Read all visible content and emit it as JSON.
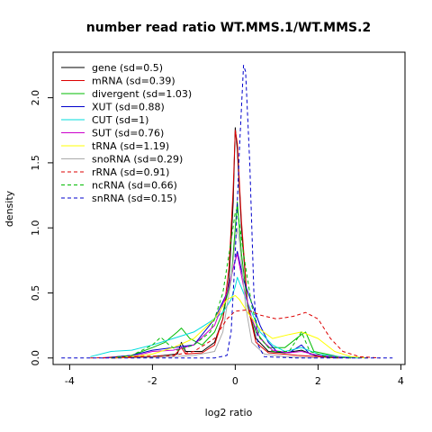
{
  "chart_data": {
    "type": "line",
    "title": "number read ratio WT.MMS.1/WT.MMS.2",
    "xlabel": "log2 ratio",
    "ylabel": "density",
    "xlim": [
      -4.4,
      4.1
    ],
    "ylim": [
      -0.05,
      2.35
    ],
    "x_ticks": [
      -4,
      -2,
      0,
      2,
      4
    ],
    "y_ticks": [
      0.0,
      0.5,
      1.0,
      1.5,
      2.0
    ],
    "legend_position": "top-left",
    "grid": false,
    "series": [
      {
        "name": "gene (sd=0.5)",
        "color": "#000000",
        "dash": "solid",
        "points": [
          [
            -3.0,
            0.0
          ],
          [
            -2.0,
            0.01
          ],
          [
            -1.4,
            0.03
          ],
          [
            -1.3,
            0.12
          ],
          [
            -1.2,
            0.05
          ],
          [
            -0.8,
            0.05
          ],
          [
            -0.5,
            0.12
          ],
          [
            -0.3,
            0.3
          ],
          [
            -0.15,
            0.6
          ],
          [
            -0.05,
            1.2
          ],
          [
            0.0,
            1.77
          ],
          [
            0.05,
            1.6
          ],
          [
            0.15,
            1.0
          ],
          [
            0.3,
            0.4
          ],
          [
            0.5,
            0.15
          ],
          [
            0.8,
            0.05
          ],
          [
            1.2,
            0.04
          ],
          [
            1.6,
            0.06
          ],
          [
            2.0,
            0.01
          ],
          [
            2.5,
            0.0
          ]
        ]
      },
      {
        "name": "mRNA (sd=0.39)",
        "color": "#dd0000",
        "dash": "solid",
        "points": [
          [
            -3.0,
            0.0
          ],
          [
            -1.5,
            0.01
          ],
          [
            -1.3,
            0.08
          ],
          [
            -1.2,
            0.03
          ],
          [
            -0.8,
            0.04
          ],
          [
            -0.5,
            0.1
          ],
          [
            -0.3,
            0.3
          ],
          [
            -0.15,
            0.7
          ],
          [
            -0.05,
            1.3
          ],
          [
            0.0,
            1.75
          ],
          [
            0.05,
            1.65
          ],
          [
            0.15,
            1.05
          ],
          [
            0.3,
            0.4
          ],
          [
            0.5,
            0.12
          ],
          [
            0.8,
            0.04
          ],
          [
            1.5,
            0.02
          ],
          [
            2.0,
            0.01
          ],
          [
            2.5,
            0.0
          ]
        ]
      },
      {
        "name": "divergent (sd=1.03)",
        "color": "#00bb00",
        "dash": "solid",
        "points": [
          [
            -3.2,
            0.0
          ],
          [
            -2.5,
            0.02
          ],
          [
            -2.0,
            0.08
          ],
          [
            -1.7,
            0.12
          ],
          [
            -1.4,
            0.2
          ],
          [
            -1.3,
            0.23
          ],
          [
            -1.1,
            0.15
          ],
          [
            -0.8,
            0.1
          ],
          [
            -0.5,
            0.2
          ],
          [
            -0.3,
            0.35
          ],
          [
            -0.1,
            0.6
          ],
          [
            0.0,
            1.0
          ],
          [
            0.05,
            1.2
          ],
          [
            0.15,
            0.8
          ],
          [
            0.3,
            0.4
          ],
          [
            0.5,
            0.2
          ],
          [
            0.8,
            0.08
          ],
          [
            1.2,
            0.08
          ],
          [
            1.6,
            0.18
          ],
          [
            1.7,
            0.2
          ],
          [
            1.9,
            0.05
          ],
          [
            2.5,
            0.01
          ],
          [
            3.2,
            0.0
          ]
        ]
      },
      {
        "name": "XUT (sd=0.88)",
        "color": "#0000cc",
        "dash": "solid",
        "points": [
          [
            -3.2,
            0.0
          ],
          [
            -2.5,
            0.02
          ],
          [
            -2.0,
            0.06
          ],
          [
            -1.5,
            0.08
          ],
          [
            -1.0,
            0.1
          ],
          [
            -0.5,
            0.3
          ],
          [
            -0.2,
            0.5
          ],
          [
            0.0,
            0.75
          ],
          [
            0.05,
            0.82
          ],
          [
            0.2,
            0.6
          ],
          [
            0.4,
            0.42
          ],
          [
            0.6,
            0.25
          ],
          [
            0.8,
            0.12
          ],
          [
            1.0,
            0.05
          ],
          [
            1.3,
            0.04
          ],
          [
            1.6,
            0.1
          ],
          [
            1.8,
            0.03
          ],
          [
            2.2,
            0.01
          ],
          [
            3.0,
            0.0
          ]
        ]
      },
      {
        "name": "CUT (sd=1)",
        "color": "#00dddd",
        "dash": "solid",
        "points": [
          [
            -3.5,
            0.01
          ],
          [
            -3.0,
            0.05
          ],
          [
            -2.5,
            0.06
          ],
          [
            -2.0,
            0.1
          ],
          [
            -1.5,
            0.15
          ],
          [
            -1.0,
            0.2
          ],
          [
            -0.6,
            0.28
          ],
          [
            -0.3,
            0.35
          ],
          [
            -0.1,
            0.45
          ],
          [
            0.0,
            0.55
          ],
          [
            0.05,
            0.62
          ],
          [
            0.2,
            0.5
          ],
          [
            0.4,
            0.35
          ],
          [
            0.6,
            0.2
          ],
          [
            0.9,
            0.1
          ],
          [
            1.2,
            0.05
          ],
          [
            1.6,
            0.08
          ],
          [
            2.0,
            0.03
          ],
          [
            2.5,
            0.01
          ],
          [
            3.0,
            0.0
          ]
        ]
      },
      {
        "name": "SUT (sd=0.76)",
        "color": "#cc00cc",
        "dash": "solid",
        "points": [
          [
            -3.2,
            0.0
          ],
          [
            -2.5,
            0.01
          ],
          [
            -2.0,
            0.05
          ],
          [
            -1.5,
            0.06
          ],
          [
            -1.0,
            0.1
          ],
          [
            -0.5,
            0.25
          ],
          [
            -0.2,
            0.5
          ],
          [
            0.0,
            0.75
          ],
          [
            0.05,
            0.8
          ],
          [
            0.2,
            0.55
          ],
          [
            0.4,
            0.3
          ],
          [
            0.6,
            0.15
          ],
          [
            0.9,
            0.06
          ],
          [
            1.3,
            0.04
          ],
          [
            1.6,
            0.05
          ],
          [
            2.0,
            0.02
          ],
          [
            2.8,
            0.0
          ]
        ]
      },
      {
        "name": "tRNA (sd=1.19)",
        "color": "#ffff00",
        "dash": "solid",
        "points": [
          [
            -3.0,
            0.0
          ],
          [
            -2.5,
            0.01
          ],
          [
            -2.0,
            0.03
          ],
          [
            -1.5,
            0.08
          ],
          [
            -1.0,
            0.15
          ],
          [
            -0.5,
            0.3
          ],
          [
            -0.2,
            0.45
          ],
          [
            0.0,
            0.48
          ],
          [
            0.1,
            0.45
          ],
          [
            0.3,
            0.35
          ],
          [
            0.6,
            0.22
          ],
          [
            0.9,
            0.15
          ],
          [
            1.3,
            0.18
          ],
          [
            1.6,
            0.2
          ],
          [
            2.0,
            0.15
          ],
          [
            2.4,
            0.05
          ],
          [
            2.8,
            0.01
          ],
          [
            3.2,
            0.0
          ]
        ]
      },
      {
        "name": "snoRNA (sd=0.29)",
        "color": "#aaaaaa",
        "dash": "solid",
        "points": [
          [
            -2.5,
            0.0
          ],
          [
            -1.5,
            0.01
          ],
          [
            -1.0,
            0.02
          ],
          [
            -0.5,
            0.05
          ],
          [
            -0.3,
            0.2
          ],
          [
            -0.1,
            0.6
          ],
          [
            0.0,
            0.9
          ],
          [
            0.05,
            1.0
          ],
          [
            0.1,
            0.9
          ],
          [
            0.25,
            0.4
          ],
          [
            0.4,
            0.12
          ],
          [
            0.7,
            0.03
          ],
          [
            1.2,
            0.01
          ],
          [
            2.0,
            0.0
          ]
        ]
      },
      {
        "name": "rRNA (sd=0.91)",
        "color": "#dd0000",
        "dash": "dashed",
        "points": [
          [
            -3.5,
            0.0
          ],
          [
            -2.5,
            0.01
          ],
          [
            -1.5,
            0.02
          ],
          [
            -1.0,
            0.05
          ],
          [
            -0.5,
            0.15
          ],
          [
            -0.2,
            0.3
          ],
          [
            0.0,
            0.36
          ],
          [
            0.3,
            0.37
          ],
          [
            0.6,
            0.33
          ],
          [
            1.0,
            0.3
          ],
          [
            1.4,
            0.32
          ],
          [
            1.7,
            0.35
          ],
          [
            2.0,
            0.3
          ],
          [
            2.3,
            0.15
          ],
          [
            2.6,
            0.05
          ],
          [
            3.0,
            0.01
          ],
          [
            3.5,
            0.0
          ]
        ]
      },
      {
        "name": "ncRNA (sd=0.66)",
        "color": "#00bb00",
        "dash": "dashed",
        "points": [
          [
            -3.0,
            0.0
          ],
          [
            -2.5,
            0.02
          ],
          [
            -2.0,
            0.1
          ],
          [
            -1.8,
            0.16
          ],
          [
            -1.6,
            0.1
          ],
          [
            -1.4,
            0.06
          ],
          [
            -1.0,
            0.1
          ],
          [
            -0.6,
            0.2
          ],
          [
            -0.3,
            0.5
          ],
          [
            -0.1,
            0.9
          ],
          [
            0.0,
            1.12
          ],
          [
            0.05,
            1.15
          ],
          [
            0.2,
            0.8
          ],
          [
            0.4,
            0.4
          ],
          [
            0.6,
            0.15
          ],
          [
            0.9,
            0.05
          ],
          [
            1.3,
            0.05
          ],
          [
            1.6,
            0.2
          ],
          [
            1.8,
            0.05
          ],
          [
            2.2,
            0.01
          ],
          [
            2.8,
            0.0
          ]
        ]
      },
      {
        "name": "snRNA (sd=0.15)",
        "color": "#0000cc",
        "dash": "dashed",
        "points": [
          [
            -4.2,
            0.0
          ],
          [
            -2.0,
            0.0
          ],
          [
            -0.5,
            0.0
          ],
          [
            -0.2,
            0.02
          ],
          [
            -0.1,
            0.2
          ],
          [
            0.0,
            0.8
          ],
          [
            0.1,
            1.6
          ],
          [
            0.2,
            2.25
          ],
          [
            0.25,
            2.2
          ],
          [
            0.35,
            1.5
          ],
          [
            0.45,
            0.5
          ],
          [
            0.55,
            0.1
          ],
          [
            0.7,
            0.01
          ],
          [
            1.5,
            0.0
          ],
          [
            3.8,
            0.0
          ]
        ]
      }
    ]
  }
}
